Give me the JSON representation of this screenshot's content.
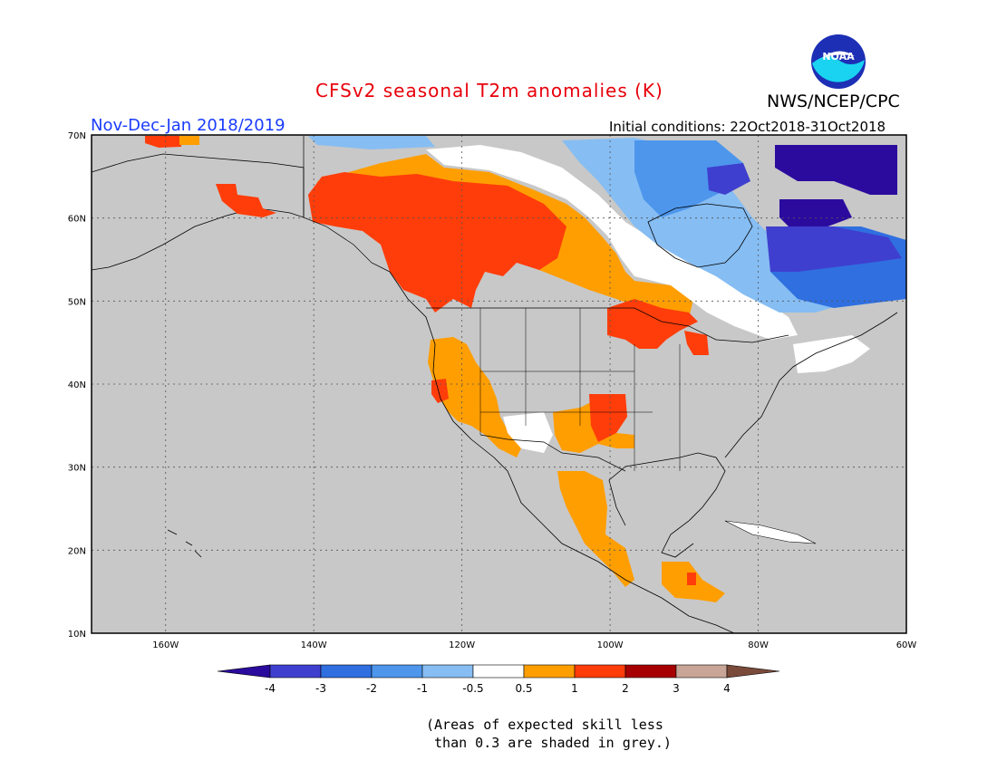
{
  "title": "CFSv2 seasonal T2m anomalies (K)",
  "agency": "NWS/NCEP/CPC",
  "logo_text": "NOAA",
  "period": "Nov-Dec-Jan 2018/2019",
  "initial_conditions": "Initial conditions: 22Oct2018-31Oct2018",
  "map": {
    "lat_labels": [
      "70N",
      "60N",
      "50N",
      "40N",
      "30N",
      "20N",
      "10N"
    ],
    "lon_labels": [
      "160W",
      "140W",
      "120W",
      "100W",
      "80W",
      "60W"
    ],
    "lon_range": [
      -170,
      -60
    ],
    "lat_range": [
      10,
      70
    ]
  },
  "colorbar": {
    "labels": [
      "-4",
      "-3",
      "-2",
      "-1",
      "-0.5",
      "0.5",
      "1",
      "2",
      "3",
      "4"
    ],
    "colors": [
      "#2b0b9e",
      "#3f3fcf",
      "#2f6fe0",
      "#4d96ec",
      "#86bdf3",
      "#ffffff",
      "#ff9e00",
      "#ff3d0a",
      "#a60000",
      "#c8a596",
      "#7a4a3a"
    ]
  },
  "footnote_line1": "(Areas of expected skill less",
  "footnote_line2": " than 0.3 are shaded in grey.)"
}
